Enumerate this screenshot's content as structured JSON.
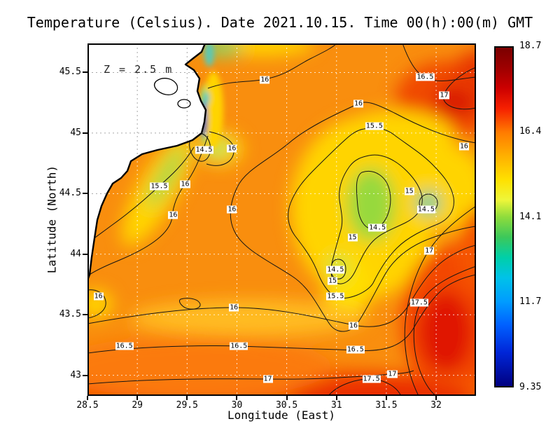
{
  "page": {
    "title": "Temperature (Celsius). Date 2021.10.15. Time 00(h):00(m) GMT",
    "annotation": "Z = 2.5 m"
  },
  "axes": {
    "x": {
      "label": "Longitude (East)",
      "ticks": [
        28.5,
        29,
        29.5,
        30,
        30.5,
        31,
        31.5,
        32
      ],
      "range": [
        28.5,
        32.4
      ]
    },
    "y": {
      "label": "Latitude (North)",
      "ticks": [
        43,
        43.5,
        44,
        44.5,
        45,
        45.5
      ],
      "range": [
        42.83,
        45.74
      ]
    }
  },
  "colorbar": {
    "labels": [
      "18.7",
      "16.4",
      "14.1",
      "11.7",
      "9.35"
    ],
    "fractions": [
      0,
      0.25,
      0.5,
      0.75,
      1
    ],
    "gradient": [
      [
        "0%",
        "#7a0000"
      ],
      [
        "6%",
        "#9e0000"
      ],
      [
        "12%",
        "#cc0000"
      ],
      [
        "18%",
        "#f62000"
      ],
      [
        "25%",
        "#ff7b00"
      ],
      [
        "32%",
        "#ffb000"
      ],
      [
        "39%",
        "#ffe000"
      ],
      [
        "45%",
        "#eef63a"
      ],
      [
        "50%",
        "#8fdc3c"
      ],
      [
        "56%",
        "#3cc85a"
      ],
      [
        "62%",
        "#00cfa8"
      ],
      [
        "68%",
        "#00c2e8"
      ],
      [
        "75%",
        "#009cff"
      ],
      [
        "82%",
        "#0060ff"
      ],
      [
        "90%",
        "#0026d8"
      ],
      [
        "100%",
        "#000080"
      ]
    ]
  },
  "chart_data": {
    "type": "heatmap",
    "title": "Temperature (Celsius). Date 2021.10.15. Time 00(h):00(m) GMT",
    "variable": "Temperature",
    "units": "Celsius",
    "depth_annotation": "Z = 2.5 m",
    "date": "2021.10.15",
    "time": "00(h):00(m) GMT",
    "xlabel": "Longitude (East)",
    "ylabel": "Latitude (North)",
    "xlim": [
      28.5,
      32.4
    ],
    "ylim": [
      42.83,
      45.74
    ],
    "grid": true,
    "legend_position": "right-colorbar",
    "colorbar_range": [
      9.35,
      18.7
    ],
    "colorbar_ticks": [
      18.7,
      16.4,
      14.1,
      11.7,
      9.35
    ],
    "contour_interval": 0.5,
    "contour_levels": [
      14.5,
      15,
      15.5,
      16,
      16.5,
      17,
      17.5
    ],
    "contour_labels": [
      {
        "value": "16",
        "lon": 30.28,
        "lat": 45.44
      },
      {
        "value": "16.5",
        "lon": 31.89,
        "lat": 45.46
      },
      {
        "value": "17",
        "lon": 32.08,
        "lat": 45.31
      },
      {
        "value": "16",
        "lon": 31.22,
        "lat": 45.24
      },
      {
        "value": "15.5",
        "lon": 31.38,
        "lat": 45.06
      },
      {
        "value": "16",
        "lon": 32.28,
        "lat": 44.89
      },
      {
        "value": "14.5",
        "lon": 29.67,
        "lat": 44.86
      },
      {
        "value": "16",
        "lon": 29.95,
        "lat": 44.87
      },
      {
        "value": "15.5",
        "lon": 29.22,
        "lat": 44.56
      },
      {
        "value": "16",
        "lon": 29.48,
        "lat": 44.58
      },
      {
        "value": "15",
        "lon": 31.73,
        "lat": 44.52
      },
      {
        "value": "14.5",
        "lon": 31.9,
        "lat": 44.37
      },
      {
        "value": "16",
        "lon": 29.36,
        "lat": 44.32
      },
      {
        "value": "16",
        "lon": 29.95,
        "lat": 44.37
      },
      {
        "value": "14.5",
        "lon": 31.41,
        "lat": 44.22
      },
      {
        "value": "15",
        "lon": 31.16,
        "lat": 44.14
      },
      {
        "value": "17",
        "lon": 31.93,
        "lat": 44.03
      },
      {
        "value": "14.5",
        "lon": 30.99,
        "lat": 43.87
      },
      {
        "value": "15",
        "lon": 30.96,
        "lat": 43.78
      },
      {
        "value": "15.5",
        "lon": 30.99,
        "lat": 43.65
      },
      {
        "value": "16",
        "lon": 28.61,
        "lat": 43.65
      },
      {
        "value": "16",
        "lon": 29.97,
        "lat": 43.56
      },
      {
        "value": "17.5",
        "lon": 31.83,
        "lat": 43.6
      },
      {
        "value": "16",
        "lon": 31.17,
        "lat": 43.41
      },
      {
        "value": "16.5",
        "lon": 28.87,
        "lat": 43.24
      },
      {
        "value": "16.5",
        "lon": 30.02,
        "lat": 43.24
      },
      {
        "value": "16.5",
        "lon": 31.19,
        "lat": 43.21
      },
      {
        "value": "17",
        "lon": 31.56,
        "lat": 43.01
      },
      {
        "value": "17.5",
        "lon": 31.35,
        "lat": 42.97
      },
      {
        "value": "17",
        "lon": 30.31,
        "lat": 42.97
      }
    ]
  }
}
